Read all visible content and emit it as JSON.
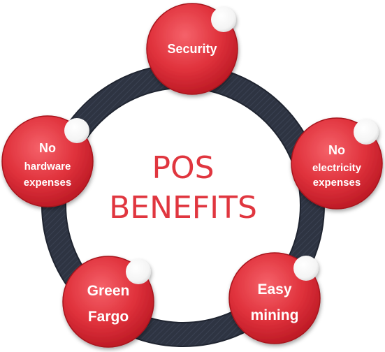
{
  "title": {
    "line1": "POS",
    "line2": "BENEFITS"
  },
  "nodes": [
    {
      "id": "security",
      "lines": [
        "Security"
      ]
    },
    {
      "id": "no-electricity",
      "lines": [
        "No",
        "electricity",
        "expenses"
      ]
    },
    {
      "id": "easy-mining",
      "lines": [
        "Easy",
        "mining"
      ]
    },
    {
      "id": "green-fargo",
      "lines": [
        "Green",
        "Fargo"
      ]
    },
    {
      "id": "no-hardware",
      "lines": [
        "No",
        "hardware",
        "expenses"
      ]
    }
  ],
  "colors": {
    "ring": "#2e3442",
    "ring_texture": "#3a4152",
    "node_light": "#f2535b",
    "node_dark": "#c51f2a",
    "node_rim": "#a8121d",
    "title": "#e0363f",
    "highlight": "#ffffff"
  }
}
